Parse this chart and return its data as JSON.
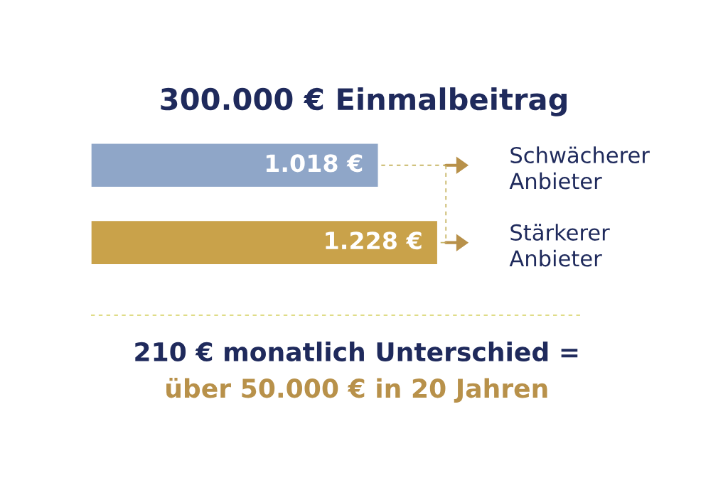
{
  "chart_data": {
    "type": "bar",
    "orientation": "horizontal",
    "title": "300.000 € Einmalbeitrag",
    "categories": [
      "Schwächerer Anbieter",
      "Stärkerer Anbieter"
    ],
    "values": [
      1018,
      1228
    ],
    "value_labels": [
      "1.018 €",
      "1.228 €"
    ],
    "colors": [
      "#8fa6c8",
      "#c9a24a"
    ],
    "annotations": [
      "210 € monatlich Unterschied =",
      "über 50.000 € in 20 Jahren"
    ],
    "grid": false,
    "legend": false
  }
}
